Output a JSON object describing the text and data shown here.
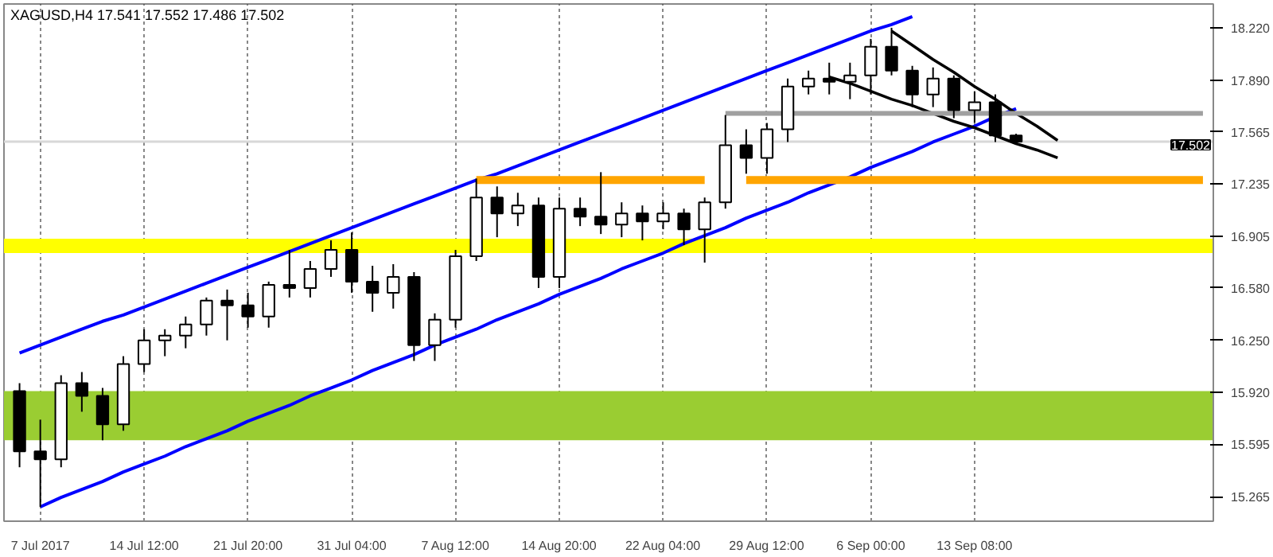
{
  "chart_data": {
    "type": "candlestick",
    "title": "XAGUSD,H4 17.541 17.552 17.486 17.502",
    "categories": [
      null,
      "7 Jul 2017",
      null,
      null,
      null,
      null,
      "14 Jul 12:00",
      null,
      null,
      null,
      null,
      "21 Jul 20:00",
      null,
      null,
      null,
      null,
      "31 Jul 04:00",
      null,
      null,
      null,
      null,
      "7 Aug 12:00",
      null,
      null,
      null,
      null,
      "14 Aug 20:00",
      null,
      null,
      null,
      null,
      "22 Aug 04:00",
      null,
      null,
      null,
      null,
      "29 Aug 12:00",
      null,
      null,
      null,
      null,
      "6 Sep 00:00",
      null,
      null,
      null,
      null,
      "13 Sep 08:00",
      null,
      null,
      null,
      null,
      null,
      null,
      null,
      null,
      null,
      null,
      null
    ],
    "ohlc": [
      [
        15.93,
        15.98,
        15.45,
        15.55
      ],
      [
        15.55,
        15.75,
        15.2,
        15.5
      ],
      [
        15.5,
        16.03,
        15.45,
        15.98
      ],
      [
        15.98,
        16.05,
        15.8,
        15.9
      ],
      [
        15.9,
        15.95,
        15.62,
        15.72
      ],
      [
        15.72,
        16.15,
        15.68,
        16.1
      ],
      [
        16.1,
        16.32,
        16.05,
        16.25
      ],
      [
        16.25,
        16.32,
        16.15,
        16.28
      ],
      [
        16.28,
        16.4,
        16.2,
        16.35
      ],
      [
        16.35,
        16.52,
        16.28,
        16.5
      ],
      [
        16.5,
        16.57,
        16.25,
        16.47
      ],
      [
        16.47,
        16.55,
        16.33,
        16.4
      ],
      [
        16.4,
        16.62,
        16.33,
        16.6
      ],
      [
        16.6,
        16.82,
        16.52,
        16.58
      ],
      [
        16.58,
        16.75,
        16.52,
        16.7
      ],
      [
        16.7,
        16.88,
        16.65,
        16.82
      ],
      [
        16.82,
        16.93,
        16.55,
        16.62
      ],
      [
        16.62,
        16.72,
        16.43,
        16.55
      ],
      [
        16.55,
        16.73,
        16.45,
        16.65
      ],
      [
        16.65,
        16.68,
        16.12,
        16.22
      ],
      [
        16.22,
        16.42,
        16.12,
        16.38
      ],
      [
        16.38,
        16.82,
        16.33,
        16.78
      ],
      [
        16.78,
        17.27,
        16.75,
        17.15
      ],
      [
        17.15,
        17.22,
        16.9,
        17.05
      ],
      [
        17.05,
        17.18,
        16.97,
        17.1
      ],
      [
        17.1,
        17.15,
        16.58,
        16.65
      ],
      [
        16.65,
        17.15,
        16.58,
        17.08
      ],
      [
        17.08,
        17.15,
        16.97,
        17.03
      ],
      [
        17.03,
        17.31,
        16.92,
        16.98
      ],
      [
        16.98,
        17.12,
        16.9,
        17.05
      ],
      [
        17.05,
        17.1,
        16.88,
        17.0
      ],
      [
        17.0,
        17.12,
        16.95,
        17.05
      ],
      [
        17.05,
        17.08,
        16.85,
        16.95
      ],
      [
        16.95,
        17.15,
        16.74,
        17.12
      ],
      [
        17.12,
        17.67,
        17.08,
        17.48
      ],
      [
        17.48,
        17.58,
        17.3,
        17.4
      ],
      [
        17.4,
        17.62,
        17.3,
        17.58
      ],
      [
        17.58,
        17.9,
        17.5,
        17.85
      ],
      [
        17.85,
        17.95,
        17.8,
        17.9
      ],
      [
        17.9,
        18.0,
        17.8,
        17.88
      ],
      [
        17.88,
        18.0,
        17.77,
        17.92
      ],
      [
        17.92,
        18.15,
        17.8,
        18.1
      ],
      [
        18.1,
        18.22,
        17.92,
        17.95
      ],
      [
        17.95,
        17.98,
        17.72,
        17.8
      ],
      [
        17.8,
        17.97,
        17.72,
        17.9
      ],
      [
        17.9,
        17.92,
        17.65,
        17.7
      ],
      [
        17.7,
        17.82,
        17.62,
        17.75
      ],
      [
        17.75,
        17.8,
        17.5,
        17.541
      ],
      [
        17.541,
        17.552,
        17.486,
        17.502
      ],
      null,
      null,
      null,
      null,
      null,
      null,
      null,
      null,
      null
    ],
    "series": [
      {
        "type": "line",
        "color": "#0000ff",
        "values": [
          16.17,
          16.22,
          16.27,
          16.32,
          16.37,
          16.41,
          16.46,
          16.51,
          16.56,
          16.61,
          16.66,
          16.71,
          16.76,
          16.81,
          16.86,
          16.91,
          16.96,
          17.01,
          17.06,
          17.11,
          17.16,
          17.21,
          17.26,
          17.3,
          17.35,
          17.4,
          17.45,
          17.5,
          17.55,
          17.6,
          17.65,
          17.7,
          17.75,
          17.8,
          17.85,
          17.9,
          17.95,
          18.0,
          18.05,
          18.1,
          18.15,
          18.2,
          18.24,
          18.29,
          null,
          null,
          null,
          null,
          null,
          null,
          null,
          null,
          null,
          null,
          null,
          null,
          null,
          null
        ]
      },
      {
        "type": "line",
        "color": "#0000ff",
        "values": [
          null,
          15.2,
          15.26,
          15.31,
          15.36,
          15.42,
          15.47,
          15.52,
          15.58,
          15.63,
          15.68,
          15.74,
          15.79,
          15.84,
          15.9,
          15.95,
          16.0,
          16.06,
          16.11,
          16.16,
          16.22,
          16.27,
          16.32,
          16.38,
          16.43,
          16.48,
          16.54,
          16.59,
          16.64,
          16.7,
          16.75,
          16.8,
          16.86,
          16.91,
          16.96,
          17.02,
          17.07,
          17.12,
          17.18,
          17.23,
          17.28,
          17.34,
          17.39,
          17.44,
          17.5,
          17.55,
          17.6,
          17.66,
          17.71,
          null,
          null,
          null,
          null,
          null,
          null,
          null,
          null,
          null
        ]
      },
      {
        "type": "line",
        "color": "#000000",
        "values": [
          null,
          null,
          null,
          null,
          null,
          null,
          null,
          null,
          null,
          null,
          null,
          null,
          null,
          null,
          null,
          null,
          null,
          null,
          null,
          null,
          null,
          null,
          null,
          null,
          null,
          null,
          null,
          null,
          null,
          null,
          null,
          null,
          null,
          null,
          null,
          null,
          null,
          null,
          null,
          null,
          null,
          null,
          18.2,
          18.11,
          18.02,
          17.94,
          17.85,
          17.77,
          17.68,
          17.6,
          17.51,
          null,
          null,
          null,
          null,
          null,
          null,
          null
        ]
      },
      {
        "type": "line",
        "color": "#000000",
        "values": [
          null,
          null,
          null,
          null,
          null,
          null,
          null,
          null,
          null,
          null,
          null,
          null,
          null,
          null,
          null,
          null,
          null,
          null,
          null,
          null,
          null,
          null,
          null,
          null,
          null,
          null,
          null,
          null,
          null,
          null,
          null,
          null,
          null,
          null,
          null,
          null,
          null,
          null,
          null,
          17.91,
          17.87,
          17.82,
          17.77,
          17.73,
          17.68,
          17.63,
          17.59,
          17.54,
          17.49,
          17.45,
          17.4,
          null,
          null,
          null,
          null,
          null,
          null,
          null
        ]
      },
      {
        "type": "line",
        "color": "#ffa500",
        "values": [
          null,
          null,
          null,
          null,
          null,
          null,
          null,
          null,
          null,
          null,
          null,
          null,
          null,
          null,
          null,
          null,
          null,
          null,
          null,
          null,
          null,
          null,
          17.26,
          17.26,
          17.26,
          17.26,
          17.26,
          17.26,
          17.26,
          17.26,
          17.26,
          17.26,
          17.26,
          17.26,
          null,
          17.26,
          17.26,
          17.26,
          17.26,
          17.26,
          17.26,
          17.26,
          17.26,
          17.26,
          17.26,
          17.26,
          17.26,
          17.26,
          17.26,
          17.26,
          17.26,
          17.26,
          17.26,
          17.26,
          17.26,
          17.26,
          17.26,
          17.26
        ]
      },
      {
        "type": "line",
        "color": "#a0a0a0",
        "values": [
          null,
          null,
          null,
          null,
          null,
          null,
          null,
          null,
          null,
          null,
          null,
          null,
          null,
          null,
          null,
          null,
          null,
          null,
          null,
          null,
          null,
          null,
          null,
          null,
          null,
          null,
          null,
          null,
          null,
          null,
          null,
          null,
          null,
          null,
          17.68,
          17.68,
          17.68,
          17.68,
          17.68,
          17.68,
          17.68,
          17.68,
          17.68,
          17.68,
          17.68,
          17.68,
          17.68,
          17.68,
          17.68,
          17.68,
          17.68,
          17.68,
          17.68,
          17.68,
          17.68,
          17.68,
          17.68,
          17.68
        ]
      }
    ],
    "bands": [
      {
        "axis": "y",
        "from": 15.62,
        "to": 15.93,
        "color": "#9acd32"
      },
      {
        "axis": "y",
        "from": 16.8,
        "to": 16.89,
        "color": "#ffff00"
      }
    ],
    "ref_lines": [
      {
        "axis": "y",
        "value": 17.502,
        "label": "17.502",
        "color": "#d8d8d8"
      }
    ],
    "ylim": [
      15.11,
      18.37
    ],
    "yticks": [
      15.265,
      15.595,
      {
        "value": 15.92,
        "label": "15.920"
      },
      {
        "value": 16.25,
        "label": "16.250"
      },
      {
        "value": 16.58,
        "label": "16.580"
      },
      16.905,
      17.235,
      17.565,
      {
        "value": 17.89,
        "label": "17.890"
      },
      {
        "value": 18.22,
        "label": "18.220"
      }
    ],
    "grid": "x"
  }
}
